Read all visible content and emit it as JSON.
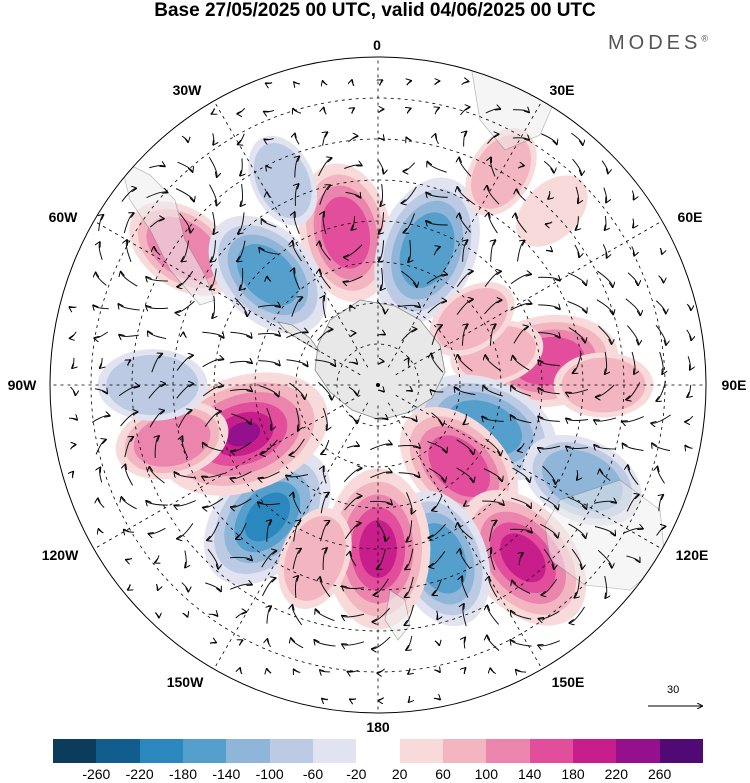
{
  "title": "Base 27/05/2025 00 UTC, valid 04/06/2025 00 UTC",
  "brand": "MODES",
  "brand_mark": "®",
  "longitude_labels": {
    "l0": "0",
    "l30e": "30E",
    "l60e": "60E",
    "l90e": "90E",
    "l120e": "120E",
    "l150e": "150E",
    "l180": "180",
    "l150w": "150W",
    "l120w": "120W",
    "l90w": "90W",
    "l60w": "60W",
    "l30w": "30W"
  },
  "vector_scale_label": "30",
  "colorbar": {
    "colors": [
      "#0c3c5c",
      "#115d8e",
      "#2a88bf",
      "#559fcd",
      "#8fb5d8",
      "#bccbe3",
      "#e2e3f0",
      "#ffffff",
      "#f9dada",
      "#f3b6c1",
      "#eb85ae",
      "#e24d9c",
      "#c81e8c",
      "#95108c",
      "#4f0a76"
    ],
    "tick_labels": [
      "-260",
      "-220",
      "-180",
      "-140",
      "-100",
      "-60",
      "-20",
      "20",
      "60",
      "100",
      "140",
      "180",
      "220",
      "260"
    ]
  },
  "anomalies": [
    {
      "lon": -12,
      "lat": -52,
      "value": 150
    },
    {
      "lon": 20,
      "lat": -55,
      "value": -170
    },
    {
      "lon": 45,
      "lat": -30,
      "value": 40
    },
    {
      "lon": -55,
      "lat": -32,
      "value": 110
    },
    {
      "lon": -45,
      "lat": -52,
      "value": -150
    },
    {
      "lon": 82,
      "lat": -48,
      "value": 150
    },
    {
      "lon": 75,
      "lat": -60,
      "value": 60
    },
    {
      "lon": 90,
      "lat": -35,
      "value": 70
    },
    {
      "lon": 112,
      "lat": -62,
      "value": -170
    },
    {
      "lon": 135,
      "lat": -62,
      "value": 150
    },
    {
      "lon": 115,
      "lat": -35,
      "value": -120
    },
    {
      "lon": 140,
      "lat": -35,
      "value": 180
    },
    {
      "lon": 160,
      "lat": -45,
      "value": -150
    },
    {
      "lon": 180,
      "lat": -50,
      "value": 190
    },
    {
      "lon": -140,
      "lat": -48,
      "value": -180
    },
    {
      "lon": -110,
      "lat": -55,
      "value": 220
    },
    {
      "lon": -105,
      "lat": -38,
      "value": 100
    },
    {
      "lon": -90,
      "lat": -35,
      "value": -90
    },
    {
      "lon": -160,
      "lat": -45,
      "value": 80
    },
    {
      "lon": 55,
      "lat": -62,
      "value": 60
    },
    {
      "lon": -25,
      "lat": -35,
      "value": -60
    },
    {
      "lon": 30,
      "lat": -30,
      "value": 60
    }
  ]
}
